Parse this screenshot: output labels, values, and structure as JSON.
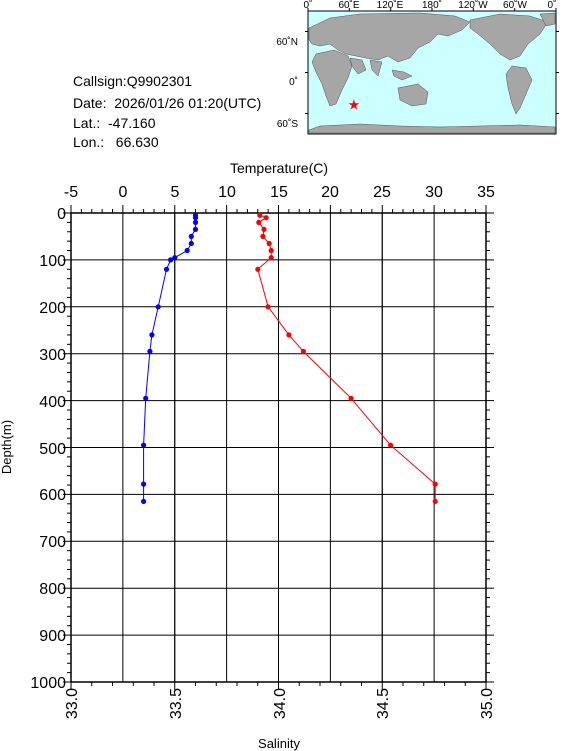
{
  "station": {
    "callsign": "Callsign:Q9902301",
    "date": "Date:  2026/01/26 01:20(UTC)",
    "lat": "Lat.:  -47.160",
    "lon": "Lon.:   66.630"
  },
  "map": {
    "top_ticks": [
      "0˚",
      "60˚E",
      "120˚E",
      "180˚",
      "120˚W",
      "60˚W",
      "0˚"
    ],
    "lat_ticks": [
      "60˚N",
      "0˚",
      "60˚S"
    ],
    "marker_lon": 66.63,
    "marker_lat": -47.16,
    "ocean_color": "#ccffff",
    "land_color": "#a6a6a6",
    "marker_color": "#ff0000"
  },
  "chart_data": {
    "type": "line",
    "top_axis_label": "Temperature(C)",
    "bottom_axis_label": "Salinity",
    "y_axis_label": "Depth(m)",
    "temperature_ticks": [
      "-5",
      "0",
      "5",
      "10",
      "15",
      "20",
      "25",
      "30",
      "35"
    ],
    "salinity_ticks": [
      "33.0",
      "33.5",
      "34.0",
      "34.5",
      "35.0"
    ],
    "depth_ticks": [
      "0",
      "100",
      "200",
      "300",
      "400",
      "500",
      "600",
      "700",
      "800",
      "900",
      "1000"
    ],
    "temperature_range": [
      -5,
      35
    ],
    "salinity_range": [
      33.0,
      35.0
    ],
    "depth_range": [
      0,
      1000
    ],
    "series": [
      {
        "quantity": "temperature",
        "color": "#ff0000",
        "depth": [
          5,
          10,
          20,
          35,
          50,
          65,
          80,
          95,
          120,
          200,
          260,
          295,
          395,
          495,
          578,
          615
        ],
        "values": [
          13.2,
          13.8,
          13.1,
          13.6,
          13.5,
          14.1,
          14.3,
          14.3,
          13.0,
          14.0,
          16.0,
          17.4,
          22.0,
          25.8,
          30.1,
          30.1
        ]
      },
      {
        "quantity": "salinity",
        "color": "#0000ff",
        "depth": [
          5,
          10,
          20,
          35,
          50,
          65,
          80,
          95,
          100,
          120,
          200,
          260,
          295,
          395,
          495,
          578,
          615
        ],
        "values": [
          33.6,
          33.6,
          33.6,
          33.6,
          33.58,
          33.58,
          33.56,
          33.5,
          33.48,
          33.46,
          33.42,
          33.39,
          33.38,
          33.36,
          33.35,
          33.35,
          33.35
        ]
      }
    ]
  }
}
